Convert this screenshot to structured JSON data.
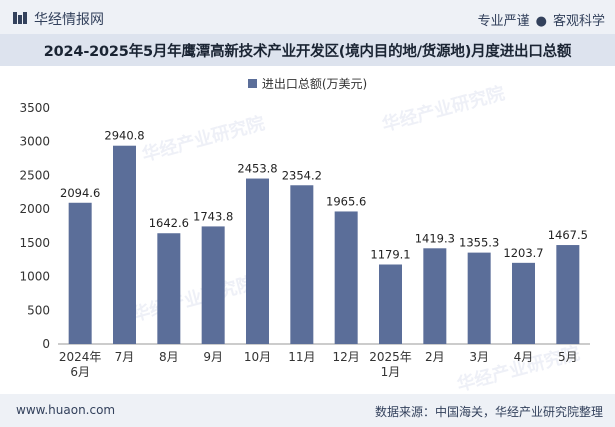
{
  "header": {
    "brand": "华经情报网",
    "tagline_left": "专业严谨",
    "tagline_sep": "●",
    "tagline_right": "客观科学"
  },
  "title": "2024-2025年5月年鹰潭高新技术产业开发区(境内目的地/货源地)月度进出口总额",
  "chart_data": {
    "type": "bar",
    "title": "2024-2025年5月年鹰潭高新技术产业开发区(境内目的地/货源地)月度进出口总额",
    "legend": "进出口总额(万美元)",
    "categories": [
      "2024年\n6月",
      "7月",
      "8月",
      "9月",
      "10月",
      "11月",
      "12月",
      "2025年\n1月",
      "2月",
      "3月",
      "4月",
      "5月"
    ],
    "values": [
      2094.6,
      2940.8,
      1642.6,
      1743.8,
      2453.8,
      2354.2,
      1965.6,
      1179.1,
      1419.3,
      1355.3,
      1203.7,
      1467.5
    ],
    "value_labels": [
      "2094.6",
      "2940.8",
      "1642.6",
      "1743.8",
      "2453.8",
      "2354.2",
      "1965.6",
      "1179.1",
      "1419.3",
      "1355.3",
      "1203.7",
      "1467.5"
    ],
    "yticks": [
      0,
      500,
      1000,
      1500,
      2000,
      2500,
      3000,
      3500
    ],
    "ylim": [
      0,
      3500
    ],
    "xlabel": "",
    "ylabel": "",
    "bar_color": "#5b6e99"
  },
  "watermark": {
    "text": "华经产业研究院",
    "url": "www.huaon.com"
  },
  "footer": {
    "url": "www.huaon.com",
    "source": "数据来源：中国海关，华经产业研究院整理"
  }
}
